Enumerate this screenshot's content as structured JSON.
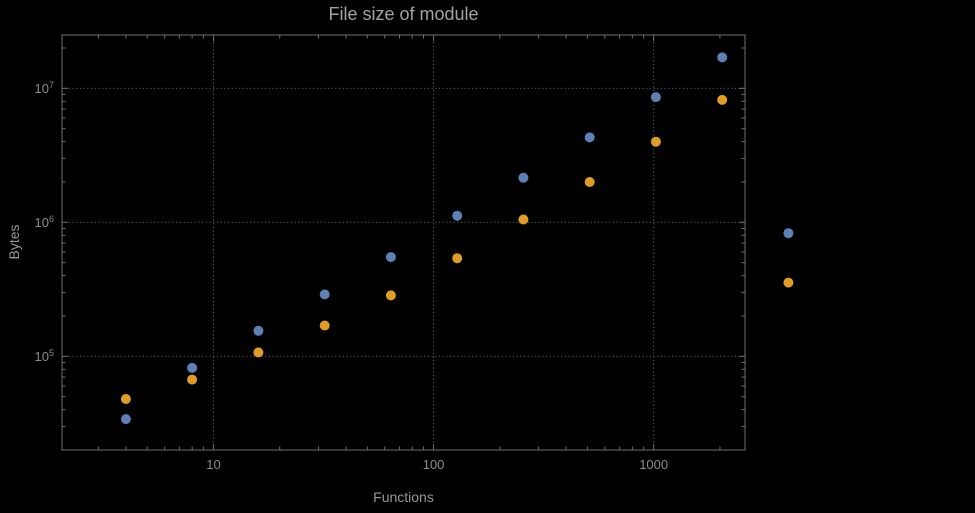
{
  "colors": {
    "background": "#000000",
    "frame": "#6f6f6f",
    "grid": "#5f5f5f",
    "tick_text": "#8c8c8c",
    "title_text": "#a3a3a3",
    "axis_label_text": "#979797",
    "series_blue": "#5e81b5",
    "series_orange": "#e19c24"
  },
  "chart_data": {
    "type": "scatter",
    "title": "File size of module",
    "xlabel": "Functions",
    "ylabel": "Bytes",
    "xscale": "log",
    "yscale": "log",
    "grid": "dotted-major",
    "legend": "none",
    "xlim": [
      2.05,
      2600
    ],
    "ylim": [
      20000,
      25000000
    ],
    "xticks": [
      10,
      100,
      1000
    ],
    "yticks": [
      100000,
      1000000,
      10000000
    ],
    "x": [
      4,
      8,
      16,
      32,
      64,
      128,
      256,
      512,
      1024,
      2048,
      4096
    ],
    "series": [
      {
        "name": "blue",
        "color": "#5e81b5",
        "values": [
          34000,
          82000,
          155000,
          290000,
          550000,
          1120000,
          2150000,
          4300000,
          8600000,
          17000000,
          830000
        ]
      },
      {
        "name": "orange",
        "color": "#e19c24",
        "values": [
          48000,
          67000,
          107000,
          170000,
          285000,
          540000,
          1050000,
          2000000,
          4000000,
          8200000,
          355000
        ]
      }
    ]
  }
}
